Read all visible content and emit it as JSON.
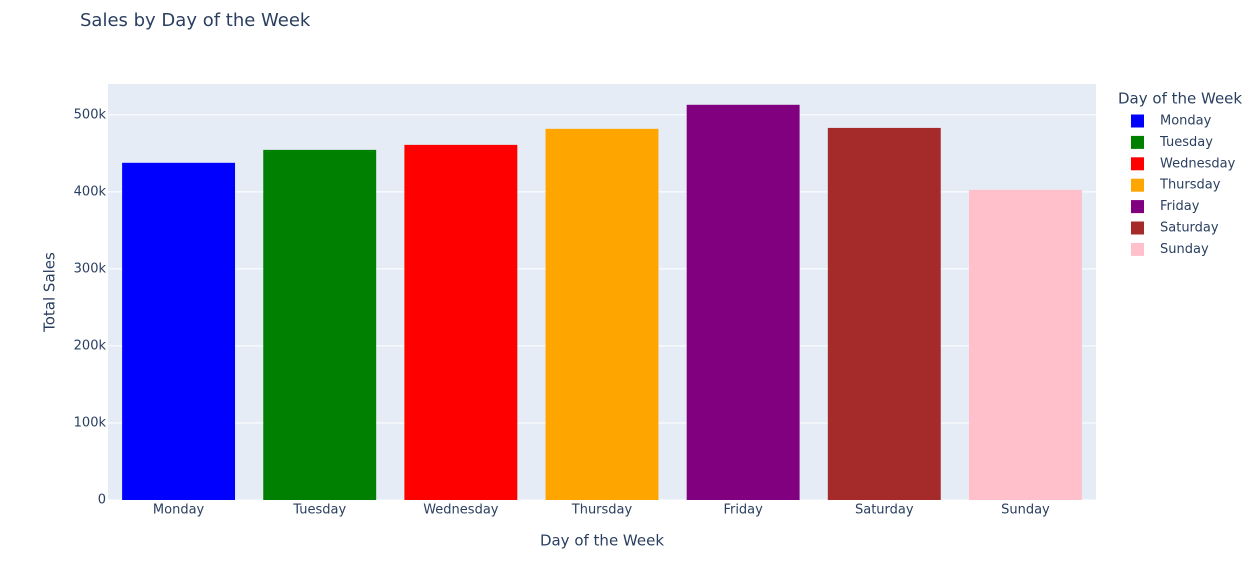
{
  "chart_data": {
    "type": "bar",
    "title": "Sales by Day of the Week",
    "x_label": "Day of the Week",
    "y_label": "Total Sales",
    "categories": [
      "Monday",
      "Tuesday",
      "Wednesday",
      "Thursday",
      "Friday",
      "Saturday",
      "Sunday"
    ],
    "values": [
      437700,
      454500,
      461000,
      481800,
      513000,
      483000,
      402600
    ],
    "colors": [
      "blue",
      "green",
      "red",
      "orange",
      "purple",
      "brown",
      "pink"
    ],
    "ylim": [
      0,
      540000
    ],
    "yticks": [
      0,
      {
        "value": 100000,
        "label": "100k"
      },
      {
        "value": 200000,
        "label": "200k"
      },
      {
        "value": 300000,
        "label": "300k"
      },
      {
        "value": 400000,
        "label": "400k"
      },
      {
        "value": 500000,
        "label": "500k"
      }
    ],
    "grid": true,
    "legend": {
      "title": "Day of the Week",
      "position": "right"
    }
  }
}
